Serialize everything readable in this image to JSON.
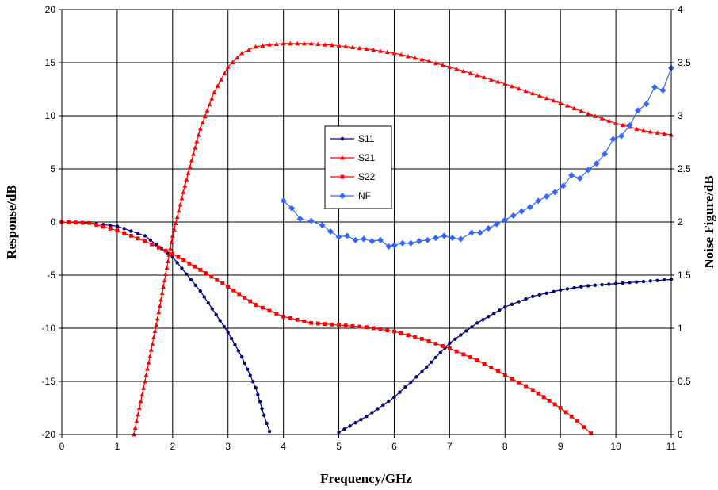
{
  "chart_data": {
    "type": "line",
    "title": "",
    "xlabel": "Frequency/GHz",
    "ylabel_left": "Response/dB",
    "ylabel_right": "Noise Figure/dB",
    "xlim": [
      0,
      11
    ],
    "ylim_left": [
      -20,
      20
    ],
    "ylim_right": [
      0,
      4
    ],
    "x_ticks": [
      0,
      1,
      2,
      3,
      4,
      5,
      6,
      7,
      8,
      9,
      10,
      11
    ],
    "x_tick_labels": [
      "0",
      "1",
      "2",
      "3",
      "4",
      "5",
      "6",
      "7",
      "8",
      "9",
      "10",
      "11"
    ],
    "y_left_ticks": [
      20,
      15,
      10,
      5,
      0,
      -5,
      -10,
      -15,
      -20
    ],
    "y_left_tick_labels": [
      "20",
      "15",
      "10",
      "5",
      "0",
      "-5",
      "-10",
      "-15",
      "-20"
    ],
    "y_right_ticks": [
      4,
      3.5,
      3,
      2.5,
      2,
      1.5,
      1,
      0.5,
      0
    ],
    "y_right_tick_labels": [
      "4",
      "3.5",
      "3",
      "2.5",
      "2",
      "1.5",
      "1",
      "0.5",
      "0"
    ],
    "grid": true,
    "legend_position": "center",
    "series": [
      {
        "name": "S11",
        "axis": "left",
        "color": "#000080",
        "marker": "circle",
        "x": [
          0,
          0.5,
          1,
          1.5,
          2,
          2.5,
          3,
          3.25,
          3.5,
          3.65,
          3.75,
          5.0,
          5.5,
          6.0,
          6.5,
          7.0,
          7.5,
          8.0,
          8.5,
          9.0,
          9.5,
          10.0,
          10.5,
          11.0
        ],
        "y": [
          0,
          -0.1,
          -0.4,
          -1.3,
          -3.3,
          -6.5,
          -10.4,
          -12.7,
          -15.6,
          -18.2,
          -19.7,
          -19.8,
          -18.3,
          -16.5,
          -14.1,
          -11.4,
          -9.5,
          -8.0,
          -7.0,
          -6.4,
          -6.0,
          -5.8,
          -5.6,
          -5.4
        ]
      },
      {
        "name": "S21",
        "axis": "left",
        "color": "#ff0000",
        "marker": "triangle",
        "x": [
          1.3,
          1.5,
          1.75,
          2.0,
          2.25,
          2.5,
          2.75,
          3.0,
          3.25,
          3.5,
          3.75,
          4.0,
          4.25,
          4.5,
          5.0,
          5.5,
          6.0,
          6.5,
          7.0,
          7.5,
          8.0,
          8.5,
          9.0,
          9.5,
          10.0,
          10.5,
          11.0
        ],
        "y": [
          -20.0,
          -15.0,
          -8.5,
          -1.3,
          4.0,
          8.8,
          12.2,
          14.6,
          15.9,
          16.5,
          16.7,
          16.8,
          16.8,
          16.8,
          16.6,
          16.3,
          15.9,
          15.3,
          14.6,
          13.8,
          13.0,
          12.1,
          11.2,
          10.2,
          9.3,
          8.6,
          8.2
        ]
      },
      {
        "name": "S22",
        "axis": "left",
        "color": "#ff0000",
        "marker": "square",
        "x": [
          0,
          0.5,
          1,
          1.5,
          2,
          2.5,
          3,
          3.5,
          4,
          4.5,
          5,
          5.5,
          6,
          6.5,
          7,
          7.5,
          8,
          8.5,
          9,
          9.3,
          9.55
        ],
        "y": [
          0,
          -0.1,
          -0.8,
          -1.8,
          -3.0,
          -4.5,
          -6.1,
          -7.8,
          -8.9,
          -9.5,
          -9.7,
          -9.9,
          -10.3,
          -11.0,
          -11.9,
          -13.0,
          -14.4,
          -15.8,
          -17.5,
          -18.7,
          -19.9
        ]
      },
      {
        "name": "NF",
        "axis": "right",
        "color": "#3366ff",
        "marker": "diamond",
        "x": [
          4.0,
          4.15,
          4.3,
          4.5,
          4.7,
          4.85,
          5.0,
          5.15,
          5.3,
          5.45,
          5.6,
          5.75,
          5.9,
          6.0,
          6.15,
          6.3,
          6.45,
          6.6,
          6.75,
          6.9,
          7.05,
          7.2,
          7.4,
          7.55,
          7.7,
          7.85,
          8.0,
          8.15,
          8.3,
          8.45,
          8.6,
          8.75,
          8.9,
          9.05,
          9.2,
          9.35,
          9.5,
          9.65,
          9.8,
          9.95,
          10.1,
          10.25,
          10.4,
          10.55,
          10.7,
          10.85,
          11.0
        ],
        "y": [
          2.2,
          2.13,
          2.03,
          2.01,
          1.97,
          1.91,
          1.86,
          1.87,
          1.83,
          1.84,
          1.82,
          1.83,
          1.77,
          1.78,
          1.8,
          1.8,
          1.82,
          1.83,
          1.85,
          1.87,
          1.85,
          1.84,
          1.9,
          1.9,
          1.94,
          1.98,
          2.02,
          2.06,
          2.1,
          2.14,
          2.2,
          2.24,
          2.28,
          2.34,
          2.44,
          2.41,
          2.49,
          2.55,
          2.64,
          2.78,
          2.81,
          2.91,
          3.05,
          3.11,
          3.27,
          3.24,
          3.45
        ]
      }
    ]
  }
}
